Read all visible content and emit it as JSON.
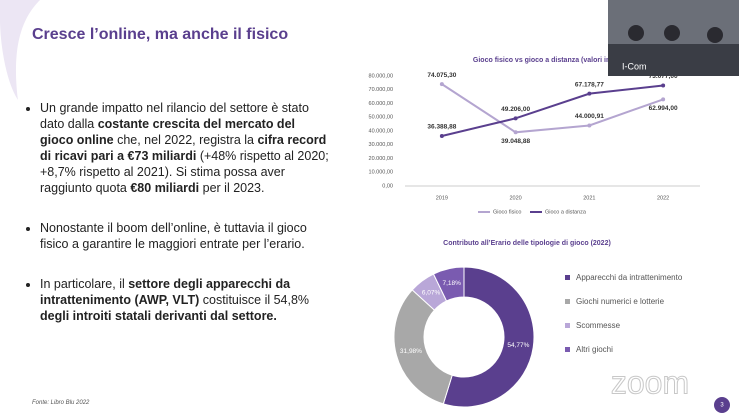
{
  "title": "Cresce l’online, ma anche il fisico",
  "bullets": [
    [
      {
        "text": "Un grande impatto nel rilancio del settore è stato dato dalla ",
        "bold": false
      },
      {
        "text": "costante crescita del mercato del gioco online",
        "bold": true
      },
      {
        "text": " che, nel 2022, registra la ",
        "bold": false
      },
      {
        "text": "cifra record di ricavi pari a €73 miliardi",
        "bold": true
      },
      {
        "text": " (+48% rispetto al 2020; +8,7% rispetto al 2021). Si stima possa aver raggiunto quota ",
        "bold": false
      },
      {
        "text": "€80 miliardi",
        "bold": true
      },
      {
        "text": " per il 2023.",
        "bold": false
      }
    ],
    [
      {
        "text": "Nonostante il boom dell’online, è tuttavia il gioco fisico a garantire le maggiori entrate per l’erario.",
        "bold": false
      }
    ],
    [
      {
        "text": "In particolare, il ",
        "bold": false
      },
      {
        "text": "settore degli apparecchi da intrattenimento (AWP, VLT)",
        "bold": true
      },
      {
        "text": " costituisce il 54,8% ",
        "bold": false
      },
      {
        "text": "degli introiti statali derivanti dal settore.",
        "bold": true
      }
    ]
  ],
  "source": "Fonte: Libro Blu 2022",
  "page_number": "3",
  "video_label": "I-Com",
  "watermark": "zoom",
  "chart_data": [
    {
      "type": "line",
      "title": "Gioco fisico vs gioco a distanza (valori in milioni)",
      "categories": [
        "2019",
        "2020",
        "2021",
        "2022"
      ],
      "series": [
        {
          "name": "Gioco fisico",
          "color": "#b4a5d0",
          "values": [
            74075.3,
            39048.88,
            44000.91,
            62994.0
          ],
          "value_labels": [
            "74.075,30",
            "39.048,88",
            "44.000,91",
            "62.994,00"
          ]
        },
        {
          "name": "Gioco a distanza",
          "color": "#5a3f8e",
          "values": [
            36388.88,
            49206.0,
            67178.77,
            73077.0
          ],
          "value_labels": [
            "36.388,88",
            "49.206,00",
            "67.178,77",
            "73.077,00"
          ]
        }
      ],
      "ylim": [
        0,
        80000
      ],
      "yticks": [
        {
          "value": 0,
          "label": "0,00"
        },
        {
          "value": 10000,
          "label": "10.000,00"
        },
        {
          "value": 20000,
          "label": "20.000,00"
        },
        {
          "value": 30000,
          "label": "30.000,00"
        },
        {
          "value": 40000,
          "label": "40.000,00"
        },
        {
          "value": 50000,
          "label": "50.000,00"
        },
        {
          "value": 60000,
          "label": "60.000,00"
        },
        {
          "value": 70000,
          "label": "70.000,00"
        },
        {
          "value": 80000,
          "label": "80.000,00"
        }
      ],
      "grid": false,
      "legend": "bottom"
    },
    {
      "type": "donut",
      "title": "Contributo all’Erario delle tipologie di gioco (2022)",
      "categories": [
        "Apparecchi da intrattenimento",
        "Giochi numerici e lotterie",
        "Scommesse",
        "Altri giochi"
      ],
      "values": [
        54.77,
        31.98,
        6.07,
        7.18
      ],
      "value_labels": [
        "54,77%",
        "31,98%",
        "6,07%",
        "7,18%"
      ],
      "colors": [
        "#5a3f8e",
        "#a8a8a8",
        "#b9a7d8",
        "#7a5bb0"
      ],
      "legend": "right"
    }
  ]
}
